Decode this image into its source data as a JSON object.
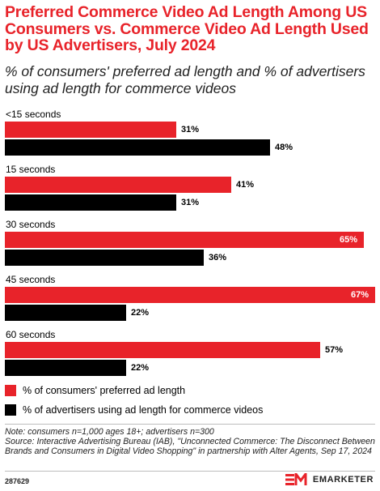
{
  "header": {
    "title": "Preferred Commerce Video Ad Length Among US Consumers vs. Commerce Video Ad Length Used by US Advertisers, July 2024",
    "subtitle": "% of consumers' preferred ad length and % of advertisers using ad length for commerce videos"
  },
  "chart_data": {
    "type": "bar",
    "orientation": "horizontal",
    "categories": [
      "<15 seconds",
      "15 seconds",
      "30 seconds",
      "45 seconds",
      "60 seconds"
    ],
    "series": [
      {
        "name": "% of consumers' preferred ad length",
        "values": [
          31,
          41,
          65,
          67,
          57
        ],
        "labels": [
          "31%",
          "41%",
          "65%",
          "67%",
          "57%"
        ],
        "color": "#e8232a"
      },
      {
        "name": "% of advertisers using ad length for commerce videos",
        "values": [
          48,
          31,
          36,
          22,
          22
        ],
        "labels": [
          "48%",
          "31%",
          "36%",
          "22%",
          "22%"
        ],
        "color": "#000000"
      }
    ],
    "xlim": [
      0,
      67
    ],
    "legend_position": "bottom-left",
    "grid": false
  },
  "legend": {
    "consumers": "% of consumers' preferred ad length",
    "advertisers": "% of advertisers using ad length for commerce videos"
  },
  "footer": {
    "note": "Note: consumers n=1,000 ages 18+; advertisers n=300",
    "source": "Source: Interactive Advertising Bureau (IAB), \"Unconnected Commerce: The Disconnect Between Brands and Consumers in Digital Video Shopping\" in partnership with Alter Agents, Sep 17, 2024",
    "chart_id": "287629",
    "brand": "EMARKETER"
  }
}
